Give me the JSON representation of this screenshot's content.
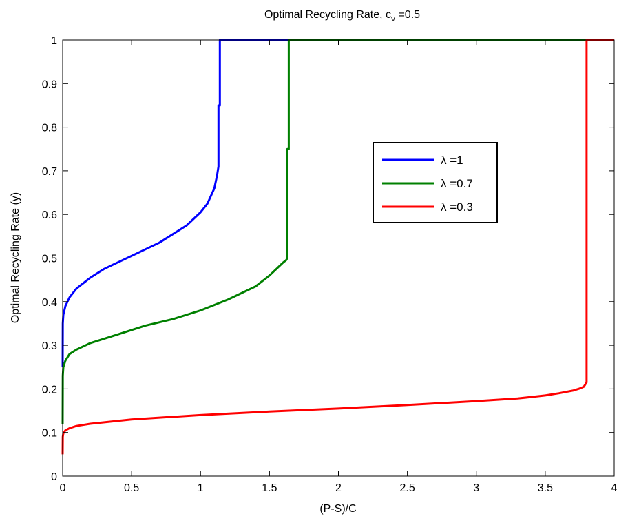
{
  "chart_data": {
    "type": "line",
    "title": "Optimal Recycling Rate, c",
    "title_sub": "v",
    "title_suffix": " =0.5",
    "xlabel": "(P-S)/C",
    "ylabel": "Optimal Recycling Rate (y)",
    "xlim": [
      0,
      4
    ],
    "ylim": [
      0,
      1
    ],
    "xticks": [
      0,
      0.5,
      1,
      1.5,
      2,
      2.5,
      3,
      3.5,
      4
    ],
    "xtick_labels": [
      "0",
      "0.5",
      "1",
      "1.5",
      "2",
      "2.5",
      "3",
      "3.5",
      "4"
    ],
    "yticks": [
      0,
      0.1,
      0.2,
      0.3,
      0.4,
      0.5,
      0.6,
      0.7,
      0.8,
      0.9,
      1
    ],
    "ytick_labels": [
      "0",
      "0.1",
      "0.2",
      "0.3",
      "0.4",
      "0.5",
      "0.6",
      "0.7",
      "0.8",
      "0.9",
      "1"
    ],
    "grid": false,
    "legend_position": "inside-upper-right",
    "series": [
      {
        "name": "λ =1",
        "color": "#0000ff",
        "x": [
          0,
          0.001,
          0.005,
          0.02,
          0.05,
          0.1,
          0.2,
          0.3,
          0.4,
          0.5,
          0.6,
          0.7,
          0.8,
          0.9,
          1.0,
          1.05,
          1.1,
          1.12,
          1.13,
          1.13,
          1.14,
          1.14,
          1.14,
          1.15,
          1.2,
          1.5,
          2,
          2.5,
          3,
          3.5,
          4
        ],
        "y": [
          0.25,
          0.35,
          0.37,
          0.39,
          0.41,
          0.43,
          0.455,
          0.475,
          0.49,
          0.505,
          0.52,
          0.535,
          0.555,
          0.575,
          0.605,
          0.625,
          0.66,
          0.69,
          0.71,
          0.85,
          0.85,
          1,
          1,
          1,
          1,
          1,
          1,
          1,
          1,
          1,
          1
        ]
      },
      {
        "name": "λ =0.7",
        "color": "#008000",
        "x": [
          0,
          0.001,
          0.005,
          0.02,
          0.05,
          0.1,
          0.2,
          0.4,
          0.6,
          0.8,
          1.0,
          1.2,
          1.4,
          1.5,
          1.55,
          1.6,
          1.62,
          1.63,
          1.63,
          1.64,
          1.64,
          1.65,
          2,
          2.5,
          3,
          3.5,
          4
        ],
        "y": [
          0.12,
          0.23,
          0.25,
          0.265,
          0.28,
          0.29,
          0.305,
          0.325,
          0.345,
          0.36,
          0.38,
          0.405,
          0.435,
          0.46,
          0.475,
          0.49,
          0.495,
          0.5,
          0.75,
          0.75,
          1,
          1,
          1,
          1,
          1,
          1,
          1
        ]
      },
      {
        "name": "λ =0.3",
        "color": "#ff0000",
        "x": [
          0,
          0.001,
          0.005,
          0.02,
          0.05,
          0.1,
          0.2,
          0.5,
          1.0,
          1.5,
          2.0,
          2.5,
          3.0,
          3.3,
          3.5,
          3.6,
          3.7,
          3.75,
          3.78,
          3.79,
          3.8,
          3.8,
          3.81,
          4
        ],
        "y": [
          0.05,
          0.09,
          0.098,
          0.105,
          0.11,
          0.115,
          0.12,
          0.13,
          0.14,
          0.148,
          0.155,
          0.163,
          0.172,
          0.178,
          0.185,
          0.19,
          0.196,
          0.201,
          0.205,
          0.21,
          0.215,
          1,
          1,
          1
        ]
      }
    ]
  }
}
